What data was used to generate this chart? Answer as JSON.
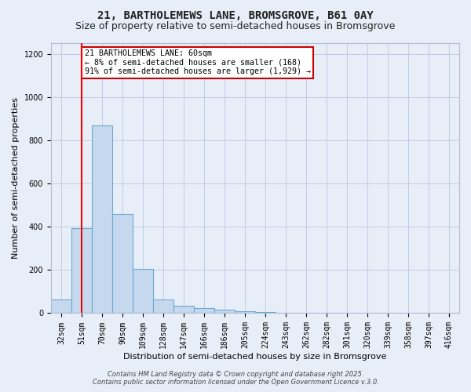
{
  "title": "21, BARTHOLEMEWS LANE, BROMSGROVE, B61 0AY",
  "subtitle": "Size of property relative to semi-detached houses in Bromsgrove",
  "xlabel": "Distribution of semi-detached houses by size in Bromsgrove",
  "ylabel": "Number of semi-detached properties",
  "categories": [
    "32sqm",
    "51sqm",
    "70sqm",
    "90sqm",
    "109sqm",
    "128sqm",
    "147sqm",
    "166sqm",
    "186sqm",
    "205sqm",
    "224sqm",
    "243sqm",
    "262sqm",
    "282sqm",
    "301sqm",
    "320sqm",
    "339sqm",
    "358sqm",
    "397sqm",
    "416sqm"
  ],
  "values": [
    65,
    395,
    870,
    460,
    205,
    65,
    35,
    25,
    15,
    8,
    5,
    3,
    2,
    1,
    1,
    1,
    0,
    0,
    0,
    0
  ],
  "bar_color": "#c5d8ee",
  "bar_edge_color": "#6aaad4",
  "red_line_index": 1,
  "ylim": [
    0,
    1250
  ],
  "yticks": [
    0,
    200,
    400,
    600,
    800,
    1000,
    1200
  ],
  "annotation_text": "21 BARTHOLEMEWS LANE: 60sqm\n← 8% of semi-detached houses are smaller (168)\n91% of semi-detached houses are larger (1,929) →",
  "annotation_box_color": "#ffffff",
  "annotation_border_color": "#cc0000",
  "footer": "Contains HM Land Registry data © Crown copyright and database right 2025.\nContains public sector information licensed under the Open Government Licence v.3.0.",
  "bg_color": "#e8eef8",
  "plot_bg_color": "#e8eef8",
  "title_fontsize": 10,
  "subtitle_fontsize": 9,
  "tick_fontsize": 7,
  "ylabel_fontsize": 8,
  "xlabel_fontsize": 8,
  "footer_fontsize": 6
}
